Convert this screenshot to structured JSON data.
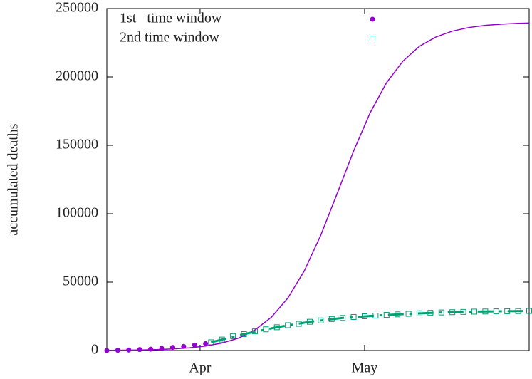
{
  "chart_data": {
    "type": "scatter",
    "ylabel": "accumulated deaths",
    "xlim": [
      75,
      152
    ],
    "ylim": [
      0,
      250000
    ],
    "xticks": [
      {
        "value": 92,
        "label": "Apr"
      },
      {
        "value": 122,
        "label": "May"
      }
    ],
    "yticks": [
      0,
      50000,
      100000,
      150000,
      200000,
      250000
    ],
    "legend": "top-left",
    "series": [
      {
        "name": "1st   time window",
        "color": "#9400d3",
        "marker": "dot",
        "x": [
          75,
          77,
          79,
          81,
          83,
          85,
          87,
          89,
          91,
          93
        ],
        "values": [
          0,
          200,
          400,
          700,
          1000,
          1600,
          2300,
          3000,
          4000,
          5000
        ]
      },
      {
        "name": "2nd time window",
        "color": "#009e73",
        "marker": "square",
        "x": [
          94,
          96,
          98,
          100,
          102,
          104,
          106,
          108,
          110,
          112,
          114,
          116,
          118,
          120,
          122,
          124,
          126,
          128,
          130,
          132,
          134,
          136,
          138,
          140,
          142,
          144,
          146,
          148,
          150,
          152
        ],
        "values": [
          6000,
          8000,
          10500,
          12000,
          14000,
          15500,
          17000,
          18500,
          19500,
          21000,
          22000,
          23000,
          23800,
          24500,
          25000,
          25500,
          26000,
          26400,
          26800,
          27200,
          27500,
          27800,
          28000,
          28200,
          28400,
          28500,
          28600,
          28700,
          28800,
          28900
        ]
      },
      {
        "color": "#9400d3",
        "marker": "line",
        "x": [
          75,
          78,
          81,
          84,
          87,
          90,
          93,
          96,
          99,
          102,
          105,
          108,
          111,
          114,
          117,
          120,
          123,
          126,
          129,
          132,
          135,
          138,
          141,
          144,
          147,
          150,
          152
        ],
        "values": [
          141,
          239,
          403,
          682,
          1148,
          1935,
          3240,
          5450,
          9050,
          15000,
          24300,
          38300,
          58200,
          84200,
          114800,
          145900,
          173700,
          195800,
          211600,
          222400,
          229200,
          233500,
          236100,
          237700,
          238600,
          239200,
          239400
        ]
      },
      {
        "color": "#009e73",
        "marker": "dashed",
        "x": [
          94,
          100,
          106,
          112,
          118,
          124,
          130,
          136,
          142,
          148,
          152
        ],
        "values": [
          6000,
          12000,
          17000,
          21000,
          23800,
          25500,
          26800,
          27800,
          28400,
          28700,
          28900
        ]
      }
    ]
  }
}
